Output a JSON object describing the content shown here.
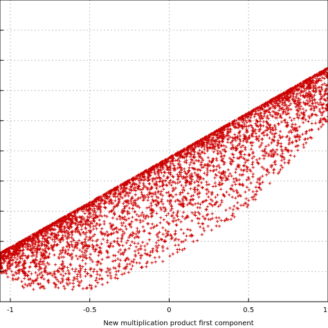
{
  "chart_data": {
    "type": "scatter",
    "title": "",
    "xlabel": "New multiplication product first component",
    "ylabel": "",
    "xlim": [
      -1.1,
      1.0
    ],
    "ylim": [
      -1.0,
      1.0
    ],
    "x_ticks": [
      -1,
      -0.5,
      0,
      0.5,
      1
    ],
    "x_tick_labels": [
      "-1",
      "-0.5",
      "0",
      "0.5",
      "1"
    ],
    "y_gridlines": [
      -0.8,
      -0.6,
      -0.4,
      -0.2,
      0,
      0.2,
      0.4,
      0.6,
      0.8
    ],
    "grid": true,
    "marker": "+",
    "series": [
      {
        "color": "#cc0000",
        "region": {
          "x_range": [
            -1.1,
            1.0
          ],
          "upper_edge": [
            [
              -1.1,
              -0.7
            ],
            [
              1.0,
              0.55
            ]
          ],
          "lower_edge": [
            [
              -1.1,
              -0.78
            ],
            [
              -0.9,
              -0.92
            ],
            [
              -0.5,
              -0.92
            ],
            [
              0.0,
              -0.72
            ],
            [
              0.5,
              -0.38
            ],
            [
              1.0,
              0.2
            ]
          ]
        }
      }
    ]
  }
}
